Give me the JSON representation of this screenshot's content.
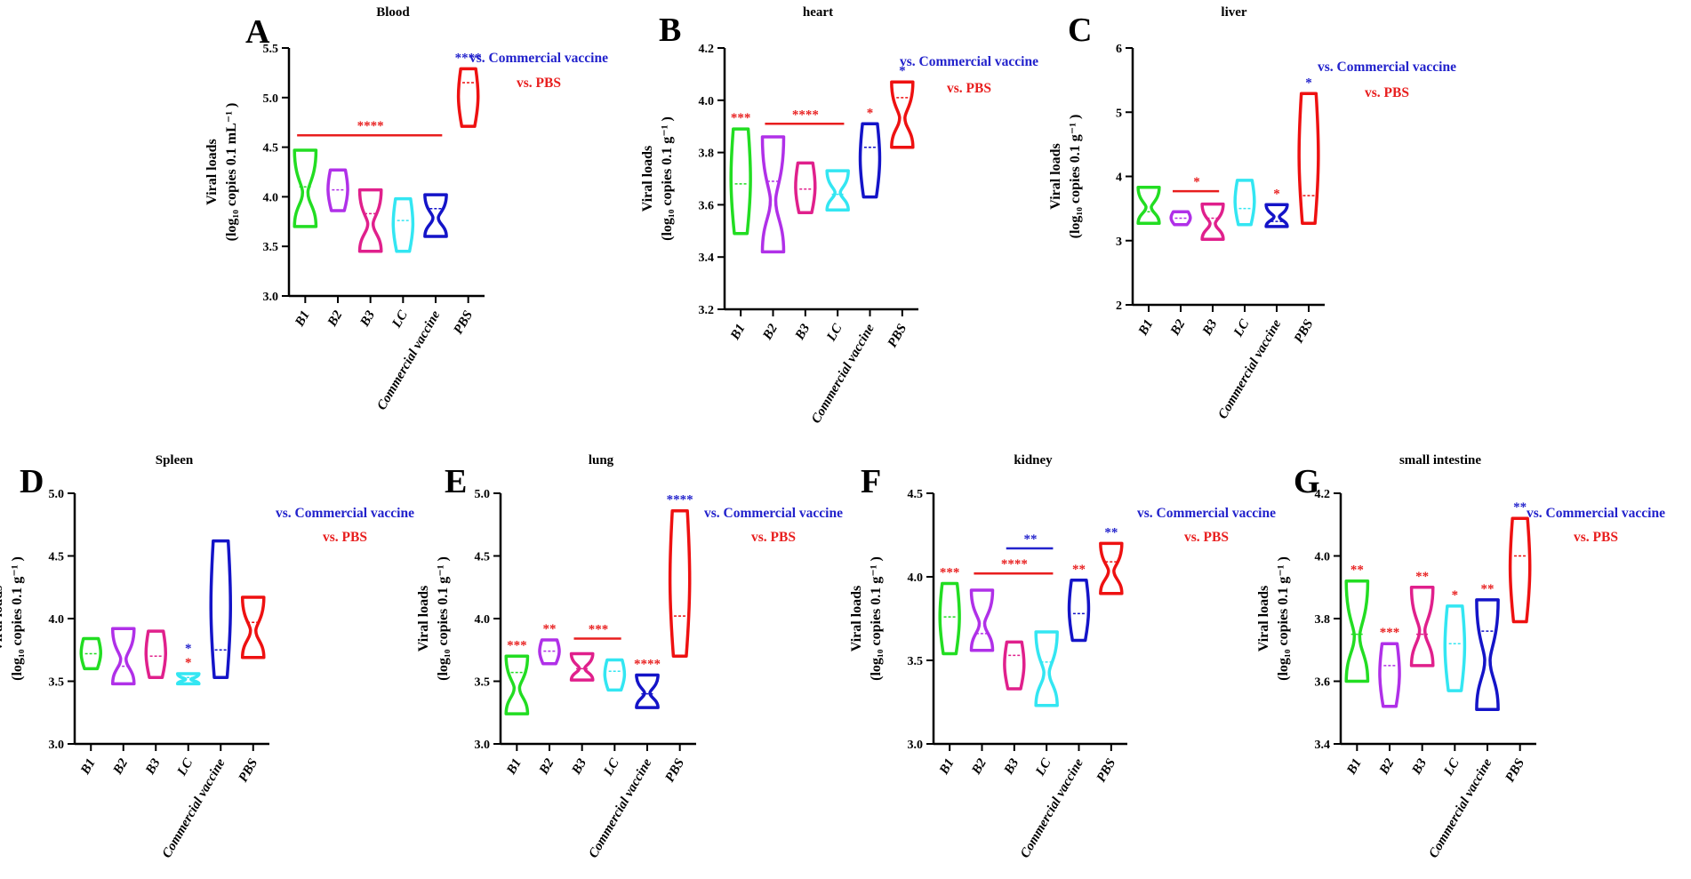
{
  "figure": {
    "groups": [
      "B1",
      "B2",
      "B3",
      "LC",
      "Commercial vaccine",
      "PBS"
    ],
    "group_colors": [
      "#22dd22",
      "#b030e8",
      "#e0208c",
      "#33e6f2",
      "#1414c8",
      "#ee1111"
    ],
    "legend": {
      "vs_commercial": "vs. Commercial vaccine",
      "vs_pbs": "vs. PBS",
      "commercial_color": "#2323cc",
      "pbs_color": "#e81e1e"
    },
    "ylabel_line1": "Viral loads",
    "ylabel_blood": "(log₁₀ copies 0.1 mL⁻¹ )",
    "ylabel_tissue": "(log₁₀ copies 0.1 g⁻¹ )"
  },
  "chart_data": [
    {
      "type": "violin",
      "letter": "A",
      "title": "Blood",
      "ylim": [
        3.0,
        5.5
      ],
      "yticks": [
        "3.0",
        "3.5",
        "4.0",
        "4.5",
        "5.0",
        "5.5"
      ],
      "series": [
        {
          "name": "B1",
          "min": 3.7,
          "max": 4.47,
          "median": 4.1
        },
        {
          "name": "B2",
          "min": 3.86,
          "max": 4.27,
          "median": 4.07
        },
        {
          "name": "B3",
          "min": 3.45,
          "max": 4.07,
          "median": 3.83
        },
        {
          "name": "LC",
          "min": 3.45,
          "max": 3.98,
          "median": 3.76
        },
        {
          "name": "Commercial vaccine",
          "min": 3.6,
          "max": 4.02,
          "median": 3.88
        },
        {
          "name": "PBS",
          "min": 4.71,
          "max": 5.29,
          "median": 5.15
        }
      ],
      "annotations": [
        {
          "group": "PBS",
          "text": "****",
          "color": "blue"
        },
        {
          "bar": [
            "B1",
            "Commercial vaccine"
          ],
          "y": 4.62,
          "text": "****",
          "color": "red"
        }
      ]
    },
    {
      "type": "violin",
      "letter": "B",
      "title": "heart",
      "ylim": [
        3.2,
        4.2
      ],
      "yticks": [
        "3.2",
        "3.4",
        "3.6",
        "3.8",
        "4.0",
        "4.2"
      ],
      "series": [
        {
          "name": "B1",
          "min": 3.49,
          "max": 3.89,
          "median": 3.68
        },
        {
          "name": "B2",
          "min": 3.42,
          "max": 3.86,
          "median": 3.69
        },
        {
          "name": "B3",
          "min": 3.57,
          "max": 3.76,
          "median": 3.66
        },
        {
          "name": "LC",
          "min": 3.58,
          "max": 3.73,
          "median": 3.64
        },
        {
          "name": "Commercial vaccine",
          "min": 3.63,
          "max": 3.91,
          "median": 3.82
        },
        {
          "name": "PBS",
          "min": 3.82,
          "max": 4.07,
          "median": 4.01
        }
      ],
      "annotations": [
        {
          "group": "B1",
          "text": "***",
          "color": "red"
        },
        {
          "bar": [
            "B2",
            "LC"
          ],
          "y": 3.91,
          "text": "****",
          "color": "red"
        },
        {
          "group": "Commercial vaccine",
          "text": "*",
          "color": "red"
        },
        {
          "group": "PBS",
          "text": "*",
          "color": "blue"
        }
      ]
    },
    {
      "type": "violin",
      "letter": "C",
      "title": "liver",
      "ylim": [
        2,
        6
      ],
      "yticks": [
        "2",
        "3",
        "4",
        "5",
        "6"
      ],
      "series": [
        {
          "name": "B1",
          "min": 3.27,
          "max": 3.83,
          "median": 3.45
        },
        {
          "name": "B2",
          "min": 3.25,
          "max": 3.45,
          "median": 3.35
        },
        {
          "name": "B3",
          "min": 3.02,
          "max": 3.57,
          "median": 3.35
        },
        {
          "name": "LC",
          "min": 3.25,
          "max": 3.94,
          "median": 3.5
        },
        {
          "name": "Commercial vaccine",
          "min": 3.22,
          "max": 3.56,
          "median": 3.3
        },
        {
          "name": "PBS",
          "min": 3.27,
          "max": 5.29,
          "median": 3.7
        }
      ],
      "annotations": [
        {
          "bar": [
            "B2",
            "B3"
          ],
          "y": 3.77,
          "text": "*",
          "color": "red"
        },
        {
          "group": "Commercial vaccine",
          "text": "*",
          "color": "red"
        },
        {
          "group": "PBS",
          "text": "*",
          "color": "blue"
        }
      ]
    },
    {
      "type": "violin",
      "letter": "D",
      "title": "Spleen",
      "ylim": [
        3.0,
        5.0
      ],
      "yticks": [
        "3.0",
        "3.5",
        "4.0",
        "4.5",
        "5.0"
      ],
      "series": [
        {
          "name": "B1",
          "min": 3.6,
          "max": 3.84,
          "median": 3.72
        },
        {
          "name": "B2",
          "min": 3.48,
          "max": 3.92,
          "median": 3.62
        },
        {
          "name": "B3",
          "min": 3.53,
          "max": 3.9,
          "median": 3.7
        },
        {
          "name": "LC",
          "min": 3.48,
          "max": 3.56,
          "median": 3.53
        },
        {
          "name": "Commercial vaccine",
          "min": 3.53,
          "max": 4.62,
          "median": 3.75
        },
        {
          "name": "PBS",
          "min": 3.69,
          "max": 4.17,
          "median": 3.97
        }
      ],
      "annotations": [
        {
          "group": "LC",
          "text": "*",
          "color": "red"
        },
        {
          "group": "LC",
          "text": "*",
          "color": "blue",
          "stack": 1
        }
      ]
    },
    {
      "type": "violin",
      "letter": "E",
      "title": "lung",
      "ylim": [
        3.0,
        5.0
      ],
      "yticks": [
        "3.0",
        "3.5",
        "4.0",
        "4.5",
        "5.0"
      ],
      "series": [
        {
          "name": "B1",
          "min": 3.24,
          "max": 3.7,
          "median": 3.57
        },
        {
          "name": "B2",
          "min": 3.64,
          "max": 3.83,
          "median": 3.74
        },
        {
          "name": "B3",
          "min": 3.51,
          "max": 3.72,
          "median": 3.6
        },
        {
          "name": "LC",
          "min": 3.43,
          "max": 3.67,
          "median": 3.58
        },
        {
          "name": "Commercial vaccine",
          "min": 3.29,
          "max": 3.55,
          "median": 3.4
        },
        {
          "name": "PBS",
          "min": 3.7,
          "max": 4.86,
          "median": 4.02
        }
      ],
      "annotations": [
        {
          "group": "B1",
          "text": "***",
          "color": "red"
        },
        {
          "group": "B2",
          "text": "**",
          "color": "red"
        },
        {
          "bar": [
            "B3",
            "LC"
          ],
          "y": 3.84,
          "text": "***",
          "color": "red"
        },
        {
          "group": "Commercial vaccine",
          "text": "****",
          "color": "red"
        },
        {
          "group": "PBS",
          "text": "****",
          "color": "blue"
        }
      ]
    },
    {
      "type": "violin",
      "letter": "F",
      "title": "kidney",
      "ylim": [
        3.0,
        4.5
      ],
      "yticks": [
        "3.0",
        "3.5",
        "4.0",
        "4.5"
      ],
      "series": [
        {
          "name": "B1",
          "min": 3.54,
          "max": 3.96,
          "median": 3.76
        },
        {
          "name": "B2",
          "min": 3.56,
          "max": 3.92,
          "median": 3.66
        },
        {
          "name": "B3",
          "min": 3.33,
          "max": 3.61,
          "median": 3.53
        },
        {
          "name": "LC",
          "min": 3.23,
          "max": 3.67,
          "median": 3.49
        },
        {
          "name": "Commercial vaccine",
          "min": 3.62,
          "max": 3.98,
          "median": 3.78
        },
        {
          "name": "PBS",
          "min": 3.9,
          "max": 4.2,
          "median": 4.09
        }
      ],
      "annotations": [
        {
          "group": "B1",
          "text": "***",
          "color": "red"
        },
        {
          "bar": [
            "B2",
            "LC"
          ],
          "y": 4.02,
          "text": "****",
          "color": "red"
        },
        {
          "bar": [
            "B3",
            "LC"
          ],
          "y": 4.17,
          "text": "**",
          "color": "blue"
        },
        {
          "group": "Commercial vaccine",
          "text": "**",
          "color": "red"
        },
        {
          "group": "PBS",
          "text": "**",
          "color": "blue"
        }
      ]
    },
    {
      "type": "violin",
      "letter": "G",
      "title": "small intestine",
      "ylim": [
        3.4,
        4.2
      ],
      "yticks": [
        "3.4",
        "3.6",
        "3.8",
        "4.0",
        "4.2"
      ],
      "series": [
        {
          "name": "B1",
          "min": 3.6,
          "max": 3.92,
          "median": 3.75
        },
        {
          "name": "B2",
          "min": 3.52,
          "max": 3.72,
          "median": 3.65
        },
        {
          "name": "B3",
          "min": 3.65,
          "max": 3.9,
          "median": 3.75
        },
        {
          "name": "LC",
          "min": 3.57,
          "max": 3.84,
          "median": 3.72
        },
        {
          "name": "Commercial vaccine",
          "min": 3.51,
          "max": 3.86,
          "median": 3.76
        },
        {
          "name": "PBS",
          "min": 3.79,
          "max": 4.12,
          "median": 4.0
        }
      ],
      "annotations": [
        {
          "group": "B1",
          "text": "**",
          "color": "red"
        },
        {
          "group": "B2",
          "text": "***",
          "color": "red"
        },
        {
          "group": "B3",
          "text": "**",
          "color": "red"
        },
        {
          "group": "LC",
          "text": "*",
          "color": "red"
        },
        {
          "group": "Commercial vaccine",
          "text": "**",
          "color": "red"
        },
        {
          "group": "PBS",
          "text": "**",
          "color": "blue"
        }
      ]
    }
  ]
}
